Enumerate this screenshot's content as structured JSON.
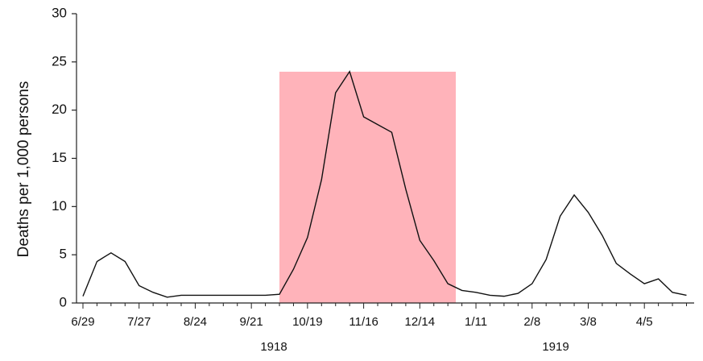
{
  "chart_data": {
    "type": "line",
    "y_label": "Deaths per 1,000 persons",
    "categories": [
      "6/29",
      null,
      null,
      null,
      "7/27",
      null,
      null,
      null,
      "8/24",
      null,
      null,
      null,
      "9/21",
      null,
      null,
      null,
      "10/19",
      null,
      null,
      null,
      "11/16",
      null,
      null,
      null,
      "12/14",
      null,
      null,
      null,
      "1/11",
      null,
      null,
      null,
      "2/8",
      null,
      null,
      null,
      "3/8",
      null,
      null,
      null,
      "4/5",
      null,
      null,
      null
    ],
    "series": [
      {
        "name": "Deaths",
        "color": "#111111",
        "values": [
          0.7,
          4.3,
          5.2,
          4.3,
          1.8,
          1.1,
          0.6,
          0.8,
          0.8,
          0.8,
          0.8,
          0.8,
          0.8,
          0.8,
          0.9,
          3.5,
          6.8,
          12.8,
          21.8,
          24.0,
          19.3,
          18.5,
          17.7,
          11.8,
          6.5,
          4.4,
          2.0,
          1.3,
          1.1,
          0.8,
          0.7,
          1.0,
          2.0,
          4.5,
          9.0,
          11.2,
          9.4,
          7.0,
          4.1,
          3.0,
          2.0,
          2.5,
          1.1,
          0.8
        ]
      }
    ],
    "ylim": [
      0,
      30
    ],
    "yticks": [
      0,
      5,
      10,
      15,
      20,
      25,
      30
    ],
    "annotations": [
      "1918",
      "1919"
    ]
  }
}
